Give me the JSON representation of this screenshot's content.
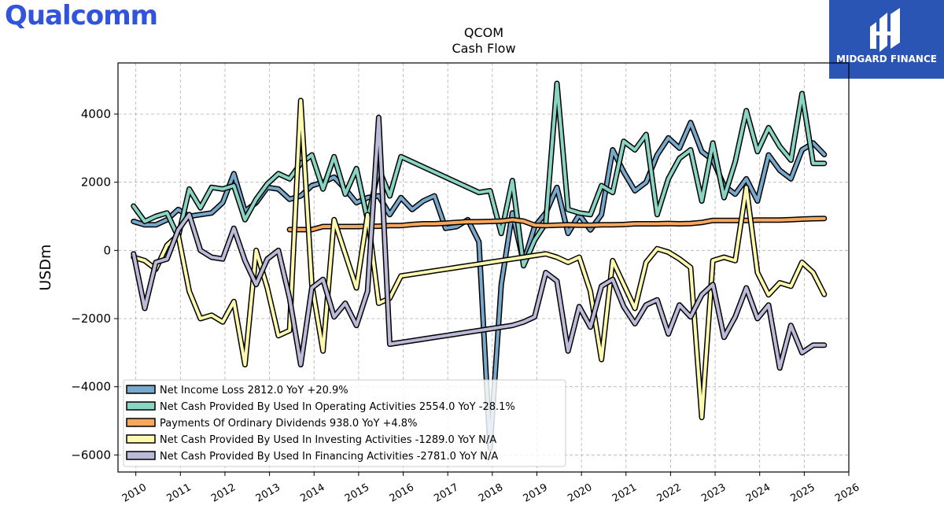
{
  "brand": {
    "logo_text": "Qualcomm",
    "badge_text": "MIDGARD FINANCE"
  },
  "colors": {
    "brand": "#3253dc",
    "badge": "#2b55b5"
  },
  "chart_data": {
    "type": "line",
    "title": "QCOM",
    "subtitle": "Cash Flow",
    "ylabel": "USDm",
    "xlim": [
      2009.6,
      2026
    ],
    "ylim": [
      -6500,
      5500
    ],
    "yticks": [
      -6000,
      -4000,
      -2000,
      0,
      2000,
      4000
    ],
    "ytick_labels": [
      "−6000",
      "−4000",
      "−2000",
      "0",
      "2000",
      "4000"
    ],
    "xticks": [
      2010,
      2011,
      2012,
      2013,
      2014,
      2015,
      2016,
      2017,
      2018,
      2019,
      2020,
      2021,
      2022,
      2023,
      2024,
      2025,
      2026
    ],
    "grid": true,
    "legend_position": "lower-left",
    "series": [
      {
        "name": "Net Income Loss",
        "legend": "Net Income Loss  2812.0 YoY +20.9%",
        "color": "#78a9cc",
        "x": [
          2009.95,
          2010.2,
          2010.45,
          2010.7,
          2010.95,
          2011.2,
          2011.45,
          2011.7,
          2011.95,
          2012.2,
          2012.45,
          2012.7,
          2012.95,
          2013.2,
          2013.45,
          2013.7,
          2013.95,
          2014.2,
          2014.45,
          2014.7,
          2014.95,
          2015.2,
          2015.45,
          2015.7,
          2015.95,
          2016.2,
          2016.45,
          2016.7,
          2016.95,
          2017.2,
          2017.45,
          2017.7,
          2017.95,
          2018.2,
          2018.45,
          2018.7,
          2018.95,
          2019.2,
          2019.45,
          2019.7,
          2019.95,
          2020.2,
          2020.45,
          2020.7,
          2020.95,
          2021.2,
          2021.45,
          2021.7,
          2021.95,
          2022.2,
          2022.45,
          2022.7,
          2022.95,
          2023.2,
          2023.45,
          2023.7,
          2023.95,
          2024.2,
          2024.45,
          2024.7,
          2024.95,
          2025.2,
          2025.45
        ],
        "y": [
          850,
          750,
          750,
          900,
          1200,
          1000,
          1050,
          1100,
          1400,
          2250,
          1150,
          1400,
          1850,
          1800,
          1500,
          1600,
          1900,
          2000,
          2150,
          1800,
          1400,
          1550,
          1600,
          1050,
          1550,
          1200,
          1450,
          1600,
          650,
          700,
          900,
          250,
          -5800,
          -1000,
          1100,
          -350,
          700,
          1100,
          1850,
          500,
          1050,
          600,
          1050,
          2950,
          2300,
          1750,
          2000,
          2800,
          3300,
          3000,
          3750,
          2900,
          2650,
          1900,
          1650,
          2100,
          1450,
          2800,
          2350,
          2100,
          2950,
          3150,
          2812
        ]
      },
      {
        "name": "Net Cash Provided By Used In Operating Activities",
        "legend": "Net Cash Provided By Used In Operating Activities  2554.0 YoY -28.1%",
        "color": "#89d4c3",
        "x": [
          2009.95,
          2010.2,
          2010.45,
          2010.7,
          2010.95,
          2011.2,
          2011.45,
          2011.7,
          2011.95,
          2012.2,
          2012.45,
          2012.7,
          2012.95,
          2013.2,
          2013.45,
          2013.7,
          2013.95,
          2014.2,
          2014.45,
          2014.7,
          2014.95,
          2015.2,
          2015.45,
          2015.7,
          2015.95,
          2016.2,
          2016.45,
          2016.7,
          2016.95,
          2017.2,
          2017.45,
          2017.7,
          2017.95,
          2018.2,
          2018.45,
          2018.7,
          2018.95,
          2019.2,
          2019.45,
          2019.7,
          2019.95,
          2020.2,
          2020.45,
          2020.7,
          2020.95,
          2021.2,
          2021.45,
          2021.7,
          2021.95,
          2022.2,
          2022.45,
          2022.7,
          2022.95,
          2023.2,
          2023.45,
          2023.7,
          2023.95,
          2024.2,
          2024.45,
          2024.7,
          2024.95,
          2025.2,
          2025.45
        ],
        "y": [
          1300,
          850,
          1000,
          1100,
          400,
          1800,
          1250,
          1850,
          1800,
          1900,
          900,
          1500,
          1950,
          2250,
          2100,
          2550,
          2800,
          1800,
          2750,
          1650,
          2400,
          900,
          2400,
          1600,
          2750,
          2600,
          2450,
          2300,
          2150,
          2000,
          1850,
          1700,
          1750,
          500,
          2050,
          -450,
          300,
          800,
          4900,
          1200,
          1100,
          1050,
          1900,
          1700,
          3200,
          2950,
          3400,
          1050,
          2100,
          2700,
          2950,
          1450,
          3150,
          1550,
          2600,
          4100,
          2900,
          3600,
          3050,
          2650,
          4600,
          2554,
          2554
        ]
      },
      {
        "name": "Payments Of Ordinary Dividends",
        "legend": "Payments Of Ordinary Dividends  938.0 YoY +4.8%",
        "color": "#f5a85e",
        "x": [
          2013.45,
          2013.7,
          2013.95,
          2014.2,
          2014.45,
          2014.7,
          2014.95,
          2015.2,
          2015.45,
          2015.7,
          2015.95,
          2016.2,
          2016.45,
          2016.7,
          2016.95,
          2017.2,
          2017.45,
          2017.7,
          2017.95,
          2018.2,
          2018.45,
          2018.7,
          2018.95,
          2019.2,
          2019.45,
          2019.7,
          2019.95,
          2020.2,
          2020.45,
          2020.7,
          2020.95,
          2021.2,
          2021.45,
          2021.7,
          2021.95,
          2022.2,
          2022.45,
          2022.7,
          2022.95,
          2023.2,
          2023.45,
          2023.7,
          2023.95,
          2024.2,
          2024.45,
          2024.7,
          2024.95,
          2025.2,
          2025.45
        ],
        "y": [
          610,
          610,
          610,
          700,
          700,
          700,
          700,
          710,
          710,
          730,
          730,
          760,
          780,
          780,
          800,
          820,
          840,
          840,
          850,
          860,
          900,
          860,
          740,
          730,
          740,
          750,
          740,
          740,
          750,
          750,
          760,
          780,
          780,
          780,
          790,
          780,
          790,
          820,
          880,
          880,
          880,
          880,
          890,
          890,
          890,
          900,
          920,
          930,
          938
        ]
      },
      {
        "name": "Net Cash Provided By Used In Investing Activities",
        "legend": "Net Cash Provided By Used In Investing Activities  -1289.0 YoY N/A",
        "color": "#fdfab0",
        "x": [
          2009.95,
          2010.2,
          2010.45,
          2010.7,
          2010.95,
          2011.2,
          2011.45,
          2011.7,
          2011.95,
          2012.2,
          2012.45,
          2012.7,
          2012.95,
          2013.2,
          2013.45,
          2013.7,
          2013.95,
          2014.2,
          2014.45,
          2014.7,
          2014.95,
          2015.2,
          2015.45,
          2015.7,
          2015.95,
          2016.2,
          2016.45,
          2016.7,
          2016.95,
          2017.2,
          2017.45,
          2017.7,
          2017.95,
          2018.2,
          2018.45,
          2018.7,
          2018.95,
          2019.2,
          2019.45,
          2019.7,
          2019.95,
          2020.2,
          2020.45,
          2020.7,
          2020.95,
          2021.2,
          2021.45,
          2021.7,
          2021.95,
          2022.2,
          2022.45,
          2022.7,
          2022.95,
          2023.2,
          2023.45,
          2023.7,
          2023.95,
          2024.2,
          2024.45,
          2024.7,
          2024.95,
          2025.2,
          2025.45
        ],
        "y": [
          -200,
          -300,
          -550,
          150,
          450,
          -1200,
          -2000,
          -1900,
          -2100,
          -1500,
          -3350,
          0,
          -1100,
          -2500,
          -2350,
          4400,
          -1000,
          -2950,
          900,
          -100,
          -1100,
          1050,
          -1550,
          -1400,
          -750,
          -700,
          -650,
          -600,
          -550,
          -500,
          -450,
          -400,
          -350,
          -300,
          -250,
          -200,
          -150,
          -100,
          -200,
          -350,
          -200,
          -1200,
          -3200,
          -300,
          -1000,
          -1700,
          -350,
          50,
          -50,
          -250,
          -500,
          -4900,
          -300,
          -200,
          -300,
          1850,
          -650,
          -1300,
          -950,
          -1050,
          -350,
          -650,
          -1289
        ]
      },
      {
        "name": "Net Cash Provided By Used In Financing Activities",
        "legend": "Net Cash Provided By Used In Financing Activities  -2781.0 YoY N/A",
        "color": "#bcbad9",
        "x": [
          2009.95,
          2010.2,
          2010.45,
          2010.7,
          2010.95,
          2011.2,
          2011.45,
          2011.7,
          2011.95,
          2012.2,
          2012.45,
          2012.7,
          2012.95,
          2013.2,
          2013.45,
          2013.7,
          2013.95,
          2014.2,
          2014.45,
          2014.7,
          2014.95,
          2015.2,
          2015.45,
          2015.7,
          2015.95,
          2016.2,
          2016.45,
          2016.7,
          2016.95,
          2017.2,
          2017.45,
          2017.7,
          2017.95,
          2018.2,
          2018.45,
          2018.7,
          2018.95,
          2019.2,
          2019.45,
          2019.7,
          2019.95,
          2020.2,
          2020.45,
          2020.7,
          2020.95,
          2021.2,
          2021.45,
          2021.7,
          2021.95,
          2022.2,
          2022.45,
          2022.7,
          2022.95,
          2023.2,
          2023.45,
          2023.7,
          2023.95,
          2024.2,
          2024.45,
          2024.7,
          2024.95,
          2025.2,
          2025.45
        ],
        "y": [
          -100,
          -1700,
          -350,
          -250,
          600,
          1050,
          0,
          -200,
          -250,
          650,
          -300,
          -1000,
          -250,
          0,
          -1400,
          -3350,
          -1100,
          -850,
          -1950,
          -1550,
          -2200,
          -1200,
          3900,
          -2750,
          -2700,
          -2650,
          -2600,
          -2550,
          -2500,
          -2450,
          -2400,
          -2350,
          -2300,
          -2250,
          -2200,
          -2100,
          -1950,
          -650,
          -900,
          -2950,
          -1650,
          -2250,
          -1050,
          -850,
          -1650,
          -2150,
          -1600,
          -1450,
          -2450,
          -1600,
          -1950,
          -1300,
          -1000,
          -2550,
          -1950,
          -1100,
          -2000,
          -1600,
          -3450,
          -2200,
          -3000,
          -2781,
          -2781
        ]
      }
    ]
  }
}
